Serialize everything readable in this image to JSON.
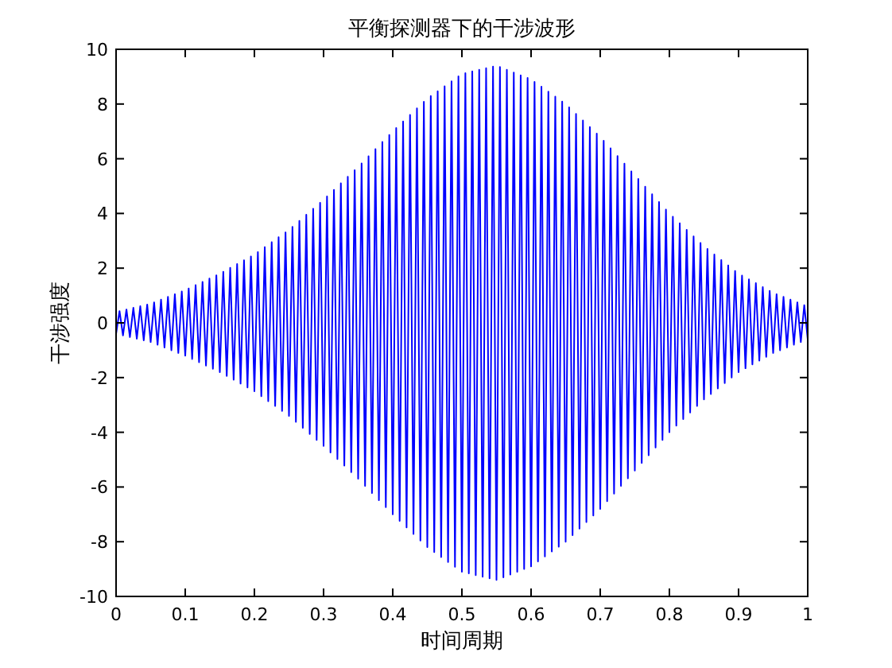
{
  "chart_data": {
    "type": "line",
    "title": "平衡探测器下的干涉波形",
    "xlabel": "时间周期",
    "ylabel": "干涉强度",
    "xlim": [
      0,
      1
    ],
    "ylim": [
      -10,
      10
    ],
    "xticks": [
      0,
      0.1,
      0.2,
      0.3,
      0.4,
      0.5,
      0.6,
      0.7,
      0.8,
      0.9,
      1
    ],
    "yticks": [
      -10,
      -8,
      -6,
      -4,
      -2,
      0,
      2,
      4,
      6,
      8,
      10
    ],
    "grid": false,
    "marker": "none",
    "line_style": "solid",
    "series": [
      {
        "color": "#0000ff",
        "x": [
          0,
          0.005,
          0.01,
          0.015,
          0.02,
          0.025,
          0.03,
          0.035,
          0.04,
          0.045,
          0.05,
          0.055,
          0.06,
          0.065,
          0.07,
          0.075,
          0.08,
          0.085,
          0.09,
          0.095,
          0.1,
          0.105,
          0.11,
          0.115,
          0.12,
          0.125,
          0.13,
          0.135,
          0.14,
          0.145,
          0.15,
          0.155,
          0.16,
          0.165,
          0.17,
          0.175,
          0.18,
          0.185,
          0.19,
          0.195,
          0.2,
          0.205,
          0.21,
          0.215,
          0.22,
          0.225,
          0.23,
          0.235,
          0.24,
          0.245,
          0.25,
          0.255,
          0.26,
          0.265,
          0.27,
          0.275,
          0.28,
          0.285,
          0.29,
          0.295,
          0.3,
          0.305,
          0.31,
          0.315,
          0.32,
          0.325,
          0.33,
          0.335,
          0.34,
          0.345,
          0.35,
          0.355,
          0.36,
          0.365,
          0.37,
          0.375,
          0.38,
          0.385,
          0.39,
          0.395,
          0.4,
          0.405,
          0.41,
          0.415,
          0.42,
          0.425,
          0.43,
          0.435,
          0.44,
          0.445,
          0.45,
          0.455,
          0.46,
          0.465,
          0.47,
          0.475,
          0.48,
          0.485,
          0.49,
          0.495,
          0.5,
          0.505,
          0.51,
          0.515,
          0.52,
          0.525,
          0.53,
          0.535,
          0.54,
          0.545,
          0.55,
          0.555,
          0.56,
          0.565,
          0.57,
          0.575,
          0.58,
          0.585,
          0.59,
          0.595,
          0.6,
          0.605,
          0.61,
          0.615,
          0.62,
          0.625,
          0.63,
          0.635,
          0.64,
          0.645,
          0.65,
          0.655,
          0.66,
          0.665,
          0.67,
          0.675,
          0.68,
          0.685,
          0.69,
          0.695,
          0.7,
          0.705,
          0.71,
          0.715,
          0.72,
          0.725,
          0.73,
          0.735,
          0.74,
          0.745,
          0.75,
          0.755,
          0.76,
          0.765,
          0.77,
          0.775,
          0.78,
          0.785,
          0.79,
          0.795,
          0.8,
          0.805,
          0.81,
          0.815,
          0.82,
          0.825,
          0.83,
          0.835,
          0.84,
          0.845,
          0.85,
          0.855,
          0.86,
          0.865,
          0.87,
          0.875,
          0.88,
          0.885,
          0.89,
          0.895,
          0.9,
          0.905,
          0.91,
          0.915,
          0.92,
          0.925,
          0.93,
          0.935,
          0.94,
          0.945,
          0.95,
          0.955,
          0.96,
          0.965,
          0.97,
          0.975,
          0.98,
          0.985,
          0.99,
          0.995,
          1
        ],
        "values": [
          -0.4,
          0.43,
          -0.46,
          0.49,
          -0.52,
          0.55,
          -0.58,
          0.61,
          -0.64,
          0.67,
          -0.7,
          0.75,
          -0.8,
          0.85,
          -0.9,
          0.95,
          -1.0,
          1.05,
          -1.1,
          1.15,
          -1.2,
          1.26,
          -1.32,
          1.38,
          -1.44,
          1.5,
          -1.56,
          1.62,
          -1.68,
          1.74,
          -1.8,
          1.87,
          -1.94,
          2.01,
          -2.08,
          2.15,
          -2.22,
          2.29,
          -2.36,
          2.43,
          -2.5,
          2.59,
          -2.68,
          2.77,
          -2.86,
          2.95,
          -3.04,
          3.13,
          -3.22,
          3.31,
          -3.4,
          3.51,
          -3.62,
          3.73,
          -3.84,
          3.95,
          -4.06,
          4.17,
          -4.28,
          4.39,
          -4.5,
          4.62,
          -4.74,
          4.86,
          -4.98,
          5.1,
          -5.22,
          5.34,
          -5.46,
          5.58,
          -5.7,
          5.83,
          -5.96,
          6.09,
          -6.22,
          6.35,
          -6.48,
          6.61,
          -6.74,
          6.87,
          -7.0,
          7.12,
          -7.24,
          7.36,
          -7.48,
          7.6,
          -7.72,
          7.84,
          -7.96,
          8.08,
          -8.2,
          8.29,
          -8.38,
          8.47,
          -8.56,
          8.65,
          -8.74,
          8.83,
          -8.92,
          9.01,
          -9.1,
          9.13,
          -9.16,
          9.19,
          -9.22,
          9.25,
          -9.28,
          9.31,
          -9.34,
          9.37,
          -9.4,
          9.35,
          -9.3,
          9.25,
          -9.2,
          9.15,
          -9.1,
          9.05,
          -9.0,
          8.95,
          -8.9,
          8.81,
          -8.72,
          8.63,
          -8.54,
          8.45,
          -8.36,
          8.27,
          -8.18,
          8.09,
          -8.0,
          7.88,
          -7.76,
          7.64,
          -7.52,
          7.4,
          -7.28,
          7.16,
          -7.04,
          6.92,
          -6.8,
          6.66,
          -6.52,
          6.38,
          -6.24,
          6.1,
          -5.96,
          5.82,
          -5.68,
          5.54,
          -5.4,
          5.26,
          -5.12,
          4.98,
          -4.84,
          4.7,
          -4.56,
          4.42,
          -4.28,
          4.14,
          -4.0,
          3.88,
          -3.76,
          3.64,
          -3.52,
          3.4,
          -3.28,
          3.16,
          -3.04,
          2.92,
          -2.8,
          2.7,
          -2.6,
          2.5,
          -2.4,
          2.3,
          -2.2,
          2.1,
          -2.0,
          1.9,
          -1.8,
          1.73,
          -1.66,
          1.59,
          -1.52,
          1.45,
          -1.38,
          1.31,
          -1.24,
          1.17,
          -1.1,
          1.05,
          -1.0,
          0.95,
          -0.9,
          0.85,
          -0.8,
          0.75,
          -0.7,
          0.65,
          -0.6
        ]
      }
    ]
  }
}
